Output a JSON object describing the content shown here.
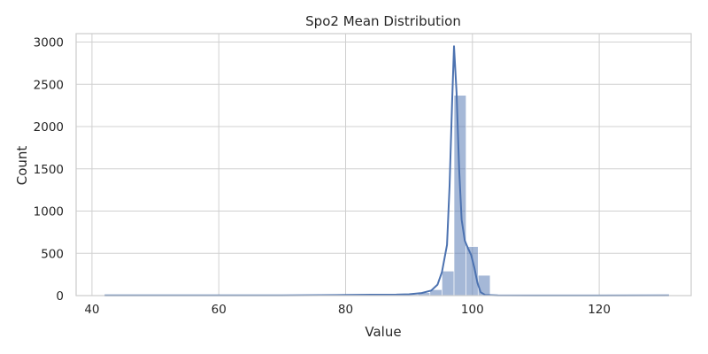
{
  "chart_data": {
    "type": "bar",
    "title": "Spo2 Mean Distribution",
    "xlabel": "Value",
    "ylabel": "Count",
    "xlim": [
      37.5,
      134.5
    ],
    "ylim": [
      0,
      3100
    ],
    "xticks": [
      40,
      60,
      80,
      100,
      120
    ],
    "yticks": [
      0,
      500,
      1000,
      1500,
      2000,
      2500,
      3000
    ],
    "grid": true,
    "bar_color": "#4c72b0",
    "bar_opacity": 0.5,
    "line_color": "#4c72b0",
    "bins": [
      {
        "x0": 80.0,
        "x1": 81.9,
        "count": 4
      },
      {
        "x0": 81.9,
        "x1": 83.8,
        "count": 12
      },
      {
        "x0": 83.8,
        "x1": 85.7,
        "count": 10
      },
      {
        "x0": 85.7,
        "x1": 87.6,
        "count": 9
      },
      {
        "x0": 87.6,
        "x1": 89.5,
        "count": 6
      },
      {
        "x0": 89.5,
        "x1": 91.4,
        "count": 12
      },
      {
        "x0": 91.4,
        "x1": 93.3,
        "count": 35
      },
      {
        "x0": 93.3,
        "x1": 95.2,
        "count": 70
      },
      {
        "x0": 95.2,
        "x1": 97.1,
        "count": 290
      },
      {
        "x0": 97.1,
        "x1": 99.0,
        "count": 2370
      },
      {
        "x0": 99.0,
        "x1": 100.9,
        "count": 580
      },
      {
        "x0": 100.9,
        "x1": 102.8,
        "count": 240
      }
    ],
    "kde": {
      "x": [
        42,
        50,
        60,
        70,
        76,
        80,
        84,
        88,
        90,
        92,
        93.5,
        94.5,
        95.2,
        96.0,
        96.4,
        96.8,
        97.1,
        97.5,
        97.9,
        98.3,
        98.8,
        99.3,
        99.8,
        100.3,
        100.8,
        101.3,
        102,
        104,
        110,
        120,
        131
      ],
      "y": [
        3,
        2,
        2,
        3,
        5,
        7,
        10,
        12,
        16,
        30,
        60,
        130,
        280,
        600,
        1300,
        2300,
        2950,
        2400,
        1500,
        900,
        650,
        560,
        480,
        330,
        150,
        40,
        8,
        2,
        1,
        1,
        2
      ]
    }
  }
}
